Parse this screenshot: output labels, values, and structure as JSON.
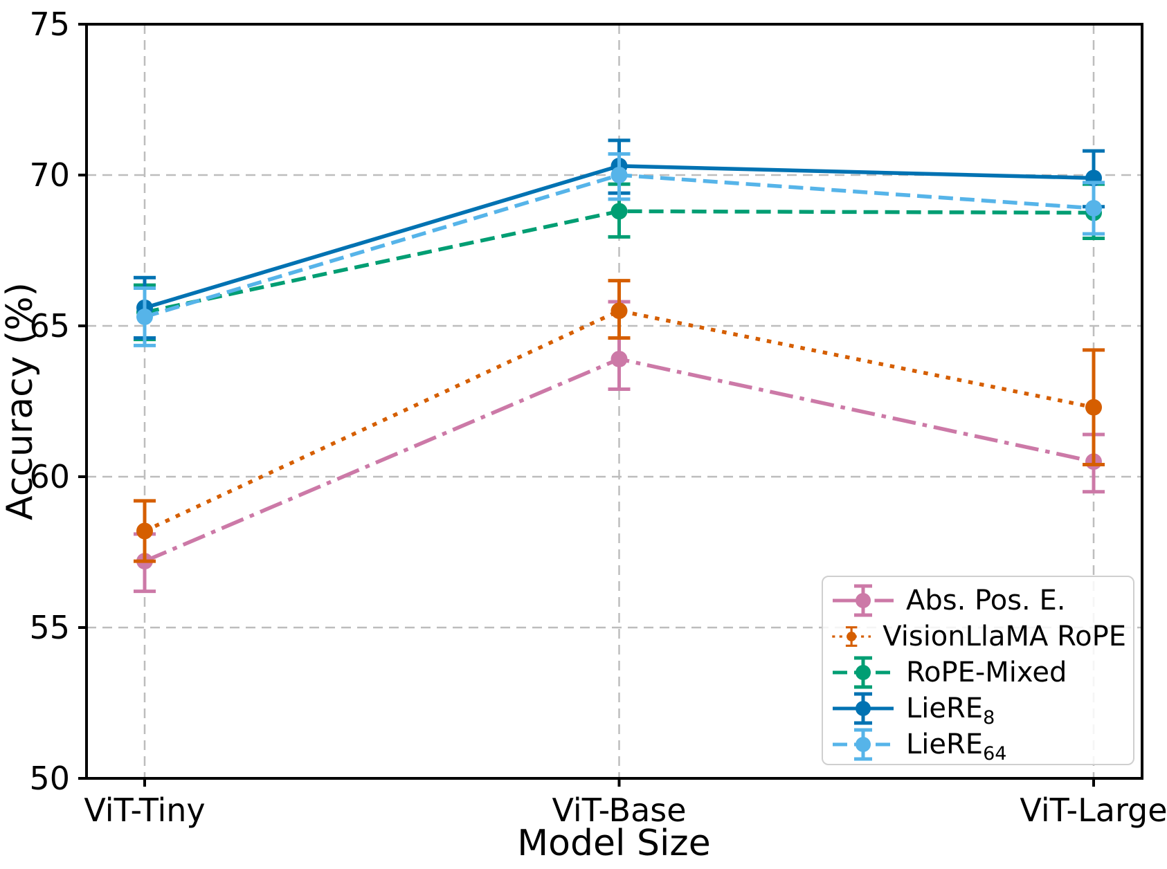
{
  "chart_data": {
    "type": "line",
    "title": "",
    "xlabel": "Model Size",
    "ylabel": "Accuracy (%)",
    "categories": [
      "ViT-Tiny",
      "ViT-Base",
      "ViT-Large"
    ],
    "ylim": [
      50,
      75
    ],
    "yticks": [
      50,
      55,
      60,
      65,
      70,
      75
    ],
    "grid": true,
    "grid_color": "#bdbdbd",
    "legend_position": "lower right",
    "series": [
      {
        "label": "Abs. Pos. E.",
        "label_sub": "",
        "color": "#CC79A7",
        "linestyle": "dashdot",
        "marker": "circle",
        "values": [
          57.2,
          63.9,
          60.5
        ],
        "err_plus": [
          0.9,
          1.9,
          0.9
        ],
        "err_minus": [
          1.0,
          1.0,
          1.0
        ]
      },
      {
        "label": "VisionLlaMA RoPE",
        "label_sub": "",
        "color": "#D55E00",
        "linestyle": "dotted",
        "marker": "circle",
        "values": [
          58.2,
          65.5,
          62.3
        ],
        "err_plus": [
          1.0,
          1.0,
          1.9
        ],
        "err_minus": [
          1.0,
          0.9,
          1.9
        ]
      },
      {
        "label": "RoPE-Mixed",
        "label_sub": "",
        "color": "#009E73",
        "linestyle": "dashed",
        "marker": "circle",
        "values": [
          65.45,
          68.8,
          68.75
        ],
        "err_plus": [
          0.9,
          0.9,
          0.95
        ],
        "err_minus": [
          0.9,
          0.85,
          0.85
        ]
      },
      {
        "label": "LieRE",
        "label_sub": "8",
        "color": "#0072B2",
        "linestyle": "solid",
        "marker": "circle",
        "values": [
          65.6,
          70.3,
          69.9
        ],
        "err_plus": [
          1.0,
          0.85,
          0.9
        ],
        "err_minus": [
          1.0,
          0.9,
          0.95
        ]
      },
      {
        "label": "LieRE",
        "label_sub": "64",
        "color": "#56B4E9",
        "linestyle": "dashed",
        "marker": "circle",
        "values": [
          65.3,
          70.0,
          68.9
        ],
        "err_plus": [
          0.95,
          0.7,
          0.85
        ],
        "err_minus": [
          0.95,
          0.8,
          0.85
        ]
      }
    ]
  }
}
